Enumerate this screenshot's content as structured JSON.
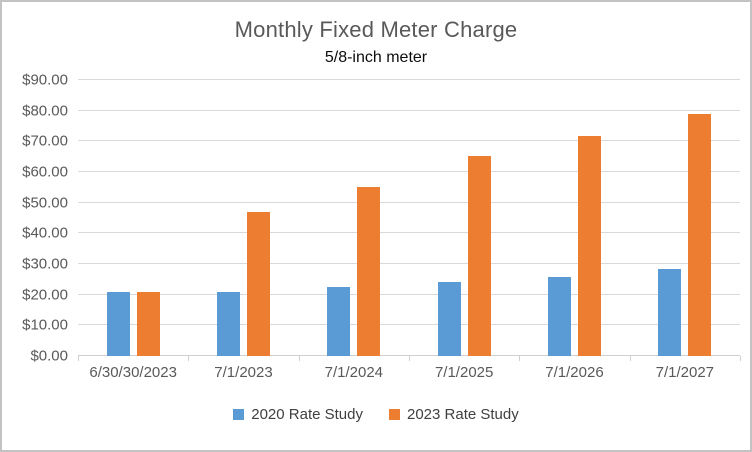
{
  "chart_data": {
    "type": "bar",
    "title": "Monthly Fixed Meter Charge",
    "subtitle": "5/8-inch meter",
    "categories": [
      "6/30/30/2023",
      "7/1/2023",
      "7/1/2024",
      "7/1/2025",
      "7/1/2026",
      "7/1/2027"
    ],
    "series": [
      {
        "name": "2020 Rate Study",
        "color": "#5B9BD5",
        "values": [
          21.0,
          21.0,
          22.5,
          24.2,
          25.9,
          28.3
        ]
      },
      {
        "name": "2023 Rate Study",
        "color": "#ED7D31",
        "values": [
          21.0,
          47.0,
          55.2,
          65.3,
          71.7,
          79.0
        ]
      }
    ],
    "ylim": [
      0,
      90
    ],
    "ytick_step": 10,
    "ytick_labels": [
      "$0.00",
      "$10.00",
      "$20.00",
      "$30.00",
      "$40.00",
      "$50.00",
      "$60.00",
      "$70.00",
      "$80.00",
      "$90.00"
    ],
    "grid": true,
    "legend_position": "bottom"
  },
  "colors": {
    "gridline": "#D9D9D9",
    "axis_text": "#595959",
    "title_text": "#595959",
    "subtitle_text": "#0D0D0D",
    "frame_border": "#C3C3C3"
  }
}
